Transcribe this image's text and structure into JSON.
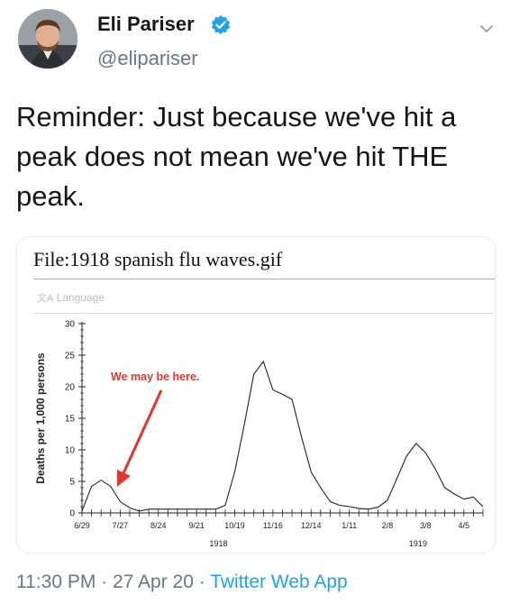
{
  "author": {
    "name": "Eli Pariser",
    "handle": "@elipariser",
    "verified": true,
    "avatar_icon": "profile-photo"
  },
  "menu_icon": "chevron-down-icon",
  "tweet": {
    "text": "Reminder: Just because we've hit a peak does not mean we've hit THE peak."
  },
  "card": {
    "title": "File:1918 spanish flu waves.gif",
    "language_label": "Language",
    "language_icon": "translate-icon"
  },
  "chart_data": {
    "type": "line",
    "ylabel": "Deaths per 1,000 persons",
    "xlabel": "",
    "ylim": [
      0,
      30
    ],
    "yticks": [
      "0",
      "5",
      "10",
      "15",
      "20",
      "25",
      "30"
    ],
    "x_tick_labels": [
      "6/29",
      "7/27",
      "8/24",
      "9/21",
      "10/19",
      "11/16",
      "12/14",
      "1/11",
      "2/8",
      "3/8",
      "4/5"
    ],
    "year_labels": [
      "1918",
      "1919"
    ],
    "annotation": "We may be here.",
    "series_color": "#222222",
    "annotation_color": "#e5352a",
    "x_weeks": [
      0,
      1,
      2,
      3,
      4,
      5,
      6,
      7,
      8,
      9,
      10,
      11,
      12,
      13,
      14,
      15,
      16,
      17,
      18,
      19,
      20,
      21,
      22,
      23,
      24,
      25,
      26,
      27,
      28,
      29,
      30,
      31,
      32,
      33,
      34,
      35,
      36,
      37,
      38,
      39,
      40,
      41,
      42
    ],
    "values": [
      0.3,
      4.2,
      5.2,
      4.2,
      1.8,
      0.8,
      0.3,
      0.6,
      0.6,
      0.6,
      0.6,
      0.6,
      0.6,
      0.6,
      0.6,
      1.2,
      6.5,
      14,
      22,
      24,
      19.5,
      18.8,
      18,
      12,
      6.5,
      4,
      1.8,
      1.2,
      1,
      0.7,
      0.6,
      0.9,
      2,
      5.5,
      9,
      11,
      9.5,
      7,
      4,
      3,
      2.2,
      2.5,
      1
    ]
  },
  "footer": {
    "time": "11:30 PM",
    "sep1": " · ",
    "date": "27 Apr 20",
    "sep2": " · ",
    "app": "Twitter Web App"
  }
}
